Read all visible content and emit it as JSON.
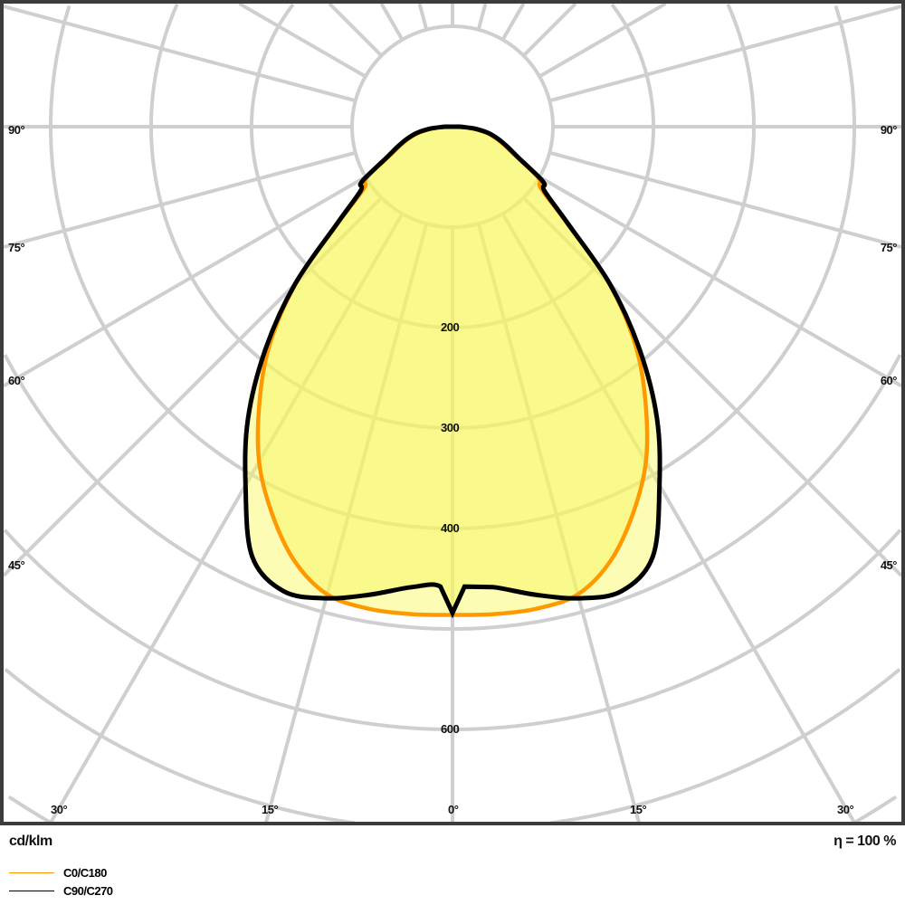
{
  "chart_data": {
    "type": "polar",
    "unit_label": "cd/klm",
    "efficiency_label": "η = 100 %",
    "radial_ticks": [
      100,
      200,
      300,
      400,
      500,
      600,
      700,
      800
    ],
    "radial_tick_labels": [
      "200",
      "300",
      "400",
      "600"
    ],
    "radial_tick_label_values": [
      200,
      300,
      400,
      600
    ],
    "angle_labels_side": [
      "90°",
      "75°",
      "60°",
      "45°"
    ],
    "angle_labels_bottom": [
      "30°",
      "15°",
      "0°",
      "15°",
      "30°"
    ],
    "grid": true,
    "legend_placement": "bottom-left",
    "series": [
      {
        "name": "C0/C180",
        "color": "#ff9900",
        "angles": [
          0,
          5,
          10,
          15,
          20,
          25,
          30,
          35,
          40,
          45,
          50,
          55,
          58,
          60,
          65,
          70,
          75,
          80,
          85,
          90
        ],
        "values": [
          486,
          487,
          487,
          482,
          460,
          425,
          385,
          335,
          283,
          220,
          148,
          108,
          103,
          96,
          70,
          56,
          45,
          34,
          20,
          6
        ]
      },
      {
        "name": "C90/C270",
        "color": "#000000",
        "angles": [
          0,
          1.5,
          5,
          10,
          15,
          20,
          25,
          30,
          35,
          40,
          45,
          50,
          55,
          58,
          60,
          65,
          70,
          75,
          80,
          85,
          90
        ],
        "values": [
          484,
          458,
          460,
          473,
          486,
          492,
          472,
          412,
          355,
          290,
          222,
          150,
          112,
          108,
          98,
          72,
          58,
          47,
          36,
          22,
          8
        ]
      }
    ]
  }
}
